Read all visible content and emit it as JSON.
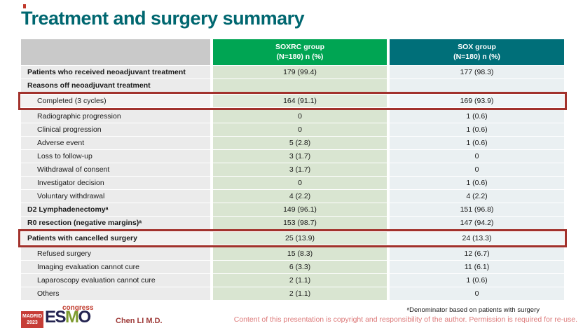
{
  "title": "Treatment and surgery summary",
  "table": {
    "columns": [
      {
        "line1": "SOXRC group",
        "line2": "(N=180) n (%)"
      },
      {
        "line1": "SOX group",
        "line2": "(N=180) n (%)"
      }
    ],
    "rows": [
      {
        "label": "Patients who received neoadjuvant treatment",
        "soxrc": "179 (99.4)",
        "sox": "177 (98.3)",
        "bold": true,
        "indent": false,
        "boxed": false
      },
      {
        "label": "Reasons off neoadjuvant treatment",
        "soxrc": "",
        "sox": "",
        "bold": true,
        "indent": false,
        "boxed": false
      },
      {
        "label": "Completed (3 cycles)",
        "soxrc": "164 (91.1)",
        "sox": "169 (93.9)",
        "bold": false,
        "indent": true,
        "boxed": true
      },
      {
        "label": "Radiographic progression",
        "soxrc": "0",
        "sox": "1 (0.6)",
        "bold": false,
        "indent": true,
        "boxed": false
      },
      {
        "label": "Clinical progression",
        "soxrc": "0",
        "sox": "1 (0.6)",
        "bold": false,
        "indent": true,
        "boxed": false
      },
      {
        "label": "Adverse event",
        "soxrc": "5 (2.8)",
        "sox": "1 (0.6)",
        "bold": false,
        "indent": true,
        "boxed": false
      },
      {
        "label": "Loss to follow-up",
        "soxrc": "3 (1.7)",
        "sox": "0",
        "bold": false,
        "indent": true,
        "boxed": false
      },
      {
        "label": "Withdrawal of consent",
        "soxrc": "3 (1.7)",
        "sox": "0",
        "bold": false,
        "indent": true,
        "boxed": false
      },
      {
        "label": "Investigator decision",
        "soxrc": "0",
        "sox": "1 (0.6)",
        "bold": false,
        "indent": true,
        "boxed": false
      },
      {
        "label": "Voluntary withdrawal",
        "soxrc": "4 (2.2)",
        "sox": "4 (2.2)",
        "bold": false,
        "indent": true,
        "boxed": false
      },
      {
        "label": "D2 Lymphadenectomyᵃ",
        "soxrc": "149 (96.1)",
        "sox": "151 (96.8)",
        "bold": true,
        "indent": false,
        "boxed": false
      },
      {
        "label": "R0 resection (negative margins)ᵃ",
        "soxrc": "153 (98.7)",
        "sox": "147 (94.2)",
        "bold": true,
        "indent": false,
        "boxed": false
      },
      {
        "label": "Patients with cancelled surgery",
        "soxrc": "25 (13.9)",
        "sox": "24 (13.3)",
        "bold": true,
        "indent": false,
        "boxed": true
      },
      {
        "label": "Refused surgery",
        "soxrc": "15 (8.3)",
        "sox": "12 (6.7)",
        "bold": false,
        "indent": true,
        "boxed": false
      },
      {
        "label": "Imaging evaluation cannot cure",
        "soxrc": "6 (3.3)",
        "sox": "11 (6.1)",
        "bold": false,
        "indent": true,
        "boxed": false
      },
      {
        "label": "Laparoscopy evaluation cannot cure",
        "soxrc": "2 (1.1)",
        "sox": "1 (0.6)",
        "bold": false,
        "indent": true,
        "boxed": false
      },
      {
        "label": "Others",
        "soxrc": "2 (1.1)",
        "sox": "0",
        "bold": false,
        "indent": true,
        "boxed": false
      }
    ]
  },
  "footer": {
    "footnote": "ᵃDenominator based on patients with surgery",
    "author": "Chen LI M.D.",
    "copyright": "Content of this presentation is copyright and responsibility of the author. Permission is required for re-use.",
    "logo": {
      "city": "MADRID",
      "year": "2023",
      "letters": [
        "E",
        "S",
        "M",
        "O"
      ],
      "congress": "congress"
    }
  },
  "colors": {
    "title_teal": "#006770",
    "header_green": "#00a553",
    "header_teal": "#006f79",
    "highlight_box_red": "#a2322c",
    "copyright_pink": "#dd7a7a",
    "logo_red": "#c63d36",
    "esmo_navy": "#232350",
    "esmo_green": "#7e9b30"
  }
}
